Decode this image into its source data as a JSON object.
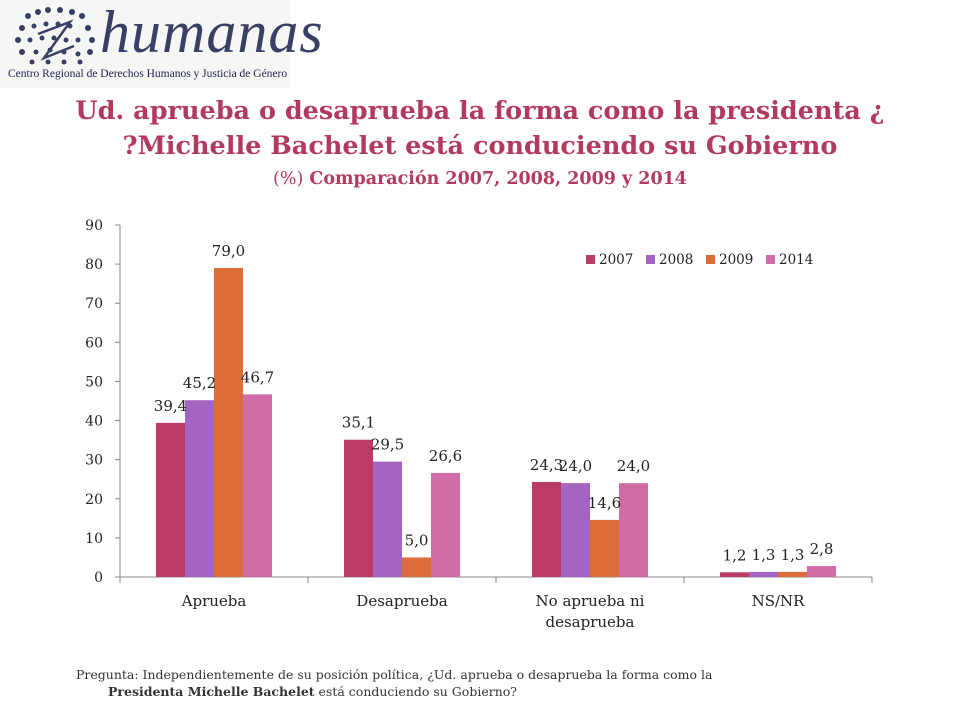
{
  "logo": {
    "name": "humanas",
    "subtitle": "Centro Regional de Derechos Humanos y Justicia de Género"
  },
  "title": {
    "line1": "Ud. aprueba o desaprueba la forma como la presidenta ¿",
    "line2": "?Michelle Bachelet está conduciendo su Gobierno",
    "line3_prefix": "(%)",
    "line3_rest": "Comparación 2007, 2008, 2009 y 2014"
  },
  "colors": {
    "2007": "#bb3a66",
    "2008": "#a465c0",
    "2009": "#dd6d38",
    "2014": "#d26ca7",
    "title": "#b23a5f"
  },
  "chart_data": {
    "type": "bar",
    "categories": [
      "Aprueba",
      "Desaprueba",
      "No aprueba ni desaprueba",
      "NS/NR"
    ],
    "category_lines": [
      [
        "Aprueba"
      ],
      [
        "Desaprueba"
      ],
      [
        "No aprueba ni",
        "desaprueba"
      ],
      [
        "NS/NR"
      ]
    ],
    "series": [
      {
        "name": "2007",
        "values": [
          39.4,
          35.1,
          24.3,
          1.2
        ],
        "labels": [
          "39,4",
          "35,1",
          "24,3",
          "1,2"
        ]
      },
      {
        "name": "2008",
        "values": [
          45.2,
          29.5,
          24.0,
          1.3
        ],
        "labels": [
          "45,2",
          "29,5",
          "24,0",
          "1,3"
        ]
      },
      {
        "name": "2009",
        "values": [
          79.0,
          5.0,
          14.6,
          1.3
        ],
        "labels": [
          "79,0",
          "5,0",
          "14,6",
          "1,3"
        ]
      },
      {
        "name": "2014",
        "values": [
          46.7,
          26.6,
          24.0,
          2.8
        ],
        "labels": [
          "46,7",
          "26,6",
          "24,0",
          "2,8"
        ]
      }
    ],
    "yticks": [
      "0",
      "10",
      "20",
      "30",
      "40",
      "50",
      "60",
      "70",
      "80",
      "90"
    ],
    "ylim": [
      0,
      90
    ],
    "grid": false,
    "legend_position": "top-right"
  },
  "footnote": {
    "line1": "Pregunta: Independientemente de su posición política, ¿Ud. aprueba o desaprueba la forma como la",
    "line2_bold": "Presidenta Michelle Bachelet",
    "line2_rest": " está conduciendo su Gobierno?"
  }
}
